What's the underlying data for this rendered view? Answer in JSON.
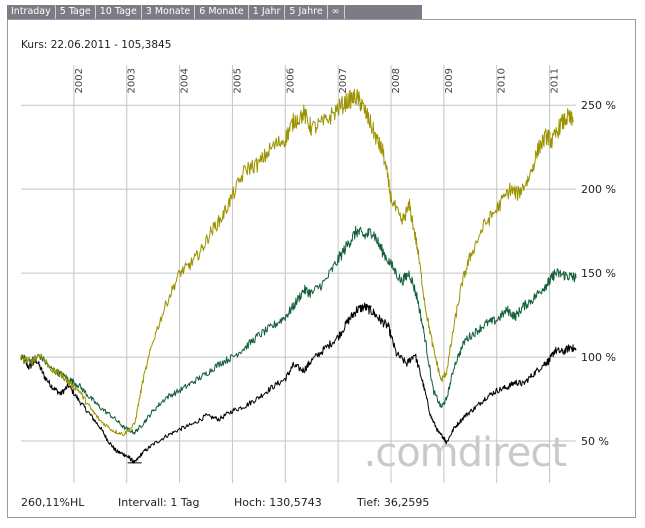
{
  "tabs": [
    "Intraday",
    "5 Tage",
    "10 Tage",
    "3 Monate",
    "6 Monate",
    "1 Jahr",
    "5 Jahre",
    "∞"
  ],
  "header": {
    "kurs_label": "Kurs:",
    "kurs_date": "22.06.2011",
    "kurs_sep": "-",
    "kurs_value": "105,3845"
  },
  "watermark": ".comdirect",
  "footer": {
    "perf": "260,11%HL",
    "interval_label": "Intervall:",
    "interval_value": "1 Tag",
    "hoch_label": "Hoch:",
    "hoch_value": "130,5743",
    "tief_label": "Tief:",
    "tief_value": "36,2595"
  },
  "colors": {
    "olive": "#9b9400",
    "green": "#14603c",
    "black": "#000000",
    "grid": "#c4c4c4",
    "tabbar": "#7b7c84"
  },
  "chart_data": {
    "type": "line",
    "title": "",
    "xlabel": "",
    "ylabel": "",
    "xlim": [
      2001.0,
      2011.5
    ],
    "ylim": [
      25,
      265
    ],
    "x_ticks": [
      2002,
      2003,
      2004,
      2005,
      2006,
      2007,
      2008,
      2009,
      2010,
      2011
    ],
    "x_tick_labels": [
      "2002",
      "2003",
      "2004",
      "2005",
      "2006",
      "2007",
      "2008",
      "2009",
      "2010",
      "2011"
    ],
    "y_ticks": [
      50,
      100,
      150,
      200,
      250
    ],
    "y_tick_labels": [
      "50 %",
      "100 %",
      "150 %",
      "200 %",
      "250 %"
    ],
    "grid": true,
    "series": [
      {
        "name": "olive",
        "color": "#9b9400",
        "x": [
          2001.0,
          2001.2,
          2001.35,
          2001.6,
          2001.75,
          2001.9,
          2002.1,
          2002.3,
          2002.5,
          2002.75,
          2002.95,
          2003.15,
          2003.3,
          2003.5,
          2003.75,
          2004.0,
          2004.2,
          2004.4,
          2004.6,
          2004.8,
          2005.0,
          2005.25,
          2005.5,
          2005.75,
          2006.0,
          2006.15,
          2006.35,
          2006.5,
          2006.75,
          2007.0,
          2007.2,
          2007.35,
          2007.45,
          2007.6,
          2007.75,
          2007.85,
          2008.0,
          2008.2,
          2008.35,
          2008.5,
          2008.65,
          2008.8,
          2008.95,
          2009.05,
          2009.2,
          2009.35,
          2009.5,
          2009.75,
          2010.0,
          2010.25,
          2010.4,
          2010.6,
          2010.8,
          2010.95,
          2011.05,
          2011.2,
          2011.35,
          2011.45
        ],
        "y": [
          100,
          97,
          102,
          92,
          90,
          85,
          80,
          70,
          62,
          56,
          54,
          60,
          85,
          110,
          132,
          150,
          155,
          163,
          175,
          183,
          196,
          212,
          215,
          225,
          230,
          240,
          245,
          236,
          240,
          248,
          253,
          255,
          250,
          240,
          228,
          222,
          195,
          180,
          190,
          165,
          130,
          105,
          86,
          91,
          120,
          145,
          160,
          178,
          188,
          200,
          197,
          206,
          225,
          232,
          228,
          238,
          243,
          240
        ]
      },
      {
        "name": "green",
        "color": "#14603c",
        "x": [
          2001.0,
          2001.2,
          2001.35,
          2001.6,
          2001.75,
          2001.9,
          2002.1,
          2002.3,
          2002.5,
          2002.75,
          2002.95,
          2003.15,
          2003.3,
          2003.5,
          2003.75,
          2004.0,
          2004.25,
          2004.5,
          2004.75,
          2005.0,
          2005.25,
          2005.5,
          2005.75,
          2006.0,
          2006.15,
          2006.35,
          2006.5,
          2006.75,
          2007.0,
          2007.2,
          2007.35,
          2007.5,
          2007.65,
          2007.8,
          2008.0,
          2008.2,
          2008.35,
          2008.5,
          2008.65,
          2008.8,
          2008.95,
          2009.05,
          2009.2,
          2009.4,
          2009.6,
          2009.8,
          2010.0,
          2010.2,
          2010.35,
          2010.5,
          2010.7,
          2010.9,
          2011.0,
          2011.1,
          2011.25,
          2011.4,
          2011.5
        ],
        "y": [
          100,
          98,
          101,
          92,
          90,
          87,
          83,
          76,
          70,
          64,
          58,
          55,
          60,
          68,
          76,
          80,
          85,
          90,
          96,
          100,
          106,
          113,
          118,
          124,
          130,
          140,
          138,
          145,
          158,
          168,
          175,
          172,
          175,
          165,
          155,
          145,
          150,
          135,
          110,
          80,
          70,
          75,
          95,
          110,
          115,
          120,
          122,
          128,
          124,
          130,
          135,
          142,
          145,
          150,
          149,
          148,
          147
        ]
      },
      {
        "name": "black",
        "color": "#000000",
        "x": [
          2001.0,
          2001.15,
          2001.3,
          2001.45,
          2001.6,
          2001.75,
          2001.9,
          2002.1,
          2002.3,
          2002.5,
          2002.65,
          2002.8,
          2002.95,
          2003.05,
          2003.15,
          2003.3,
          2003.5,
          2003.75,
          2004.0,
          2004.25,
          2004.5,
          2004.75,
          2005.0,
          2005.25,
          2005.5,
          2005.75,
          2006.0,
          2006.15,
          2006.35,
          2006.5,
          2006.75,
          2007.0,
          2007.2,
          2007.35,
          2007.5,
          2007.65,
          2007.8,
          2007.95,
          2008.1,
          2008.3,
          2008.45,
          2008.6,
          2008.75,
          2008.9,
          2009.0,
          2009.05,
          2009.2,
          2009.4,
          2009.6,
          2009.8,
          2010.0,
          2010.2,
          2010.35,
          2010.5,
          2010.7,
          2010.9,
          2011.0,
          2011.1,
          2011.25,
          2011.4,
          2011.5
        ],
        "y": [
          100,
          94,
          98,
          88,
          82,
          78,
          83,
          74,
          66,
          58,
          50,
          44,
          42,
          40,
          37,
          43,
          48,
          53,
          57,
          60,
          65,
          63,
          68,
          71,
          76,
          82,
          87,
          95,
          92,
          98,
          105,
          112,
          122,
          128,
          130,
          127,
          122,
          118,
          102,
          96,
          102,
          85,
          65,
          55,
          52,
          49,
          58,
          65,
          70,
          76,
          80,
          82,
          85,
          84,
          90,
          96,
          98,
          104,
          103,
          106,
          104
        ]
      }
    ]
  }
}
